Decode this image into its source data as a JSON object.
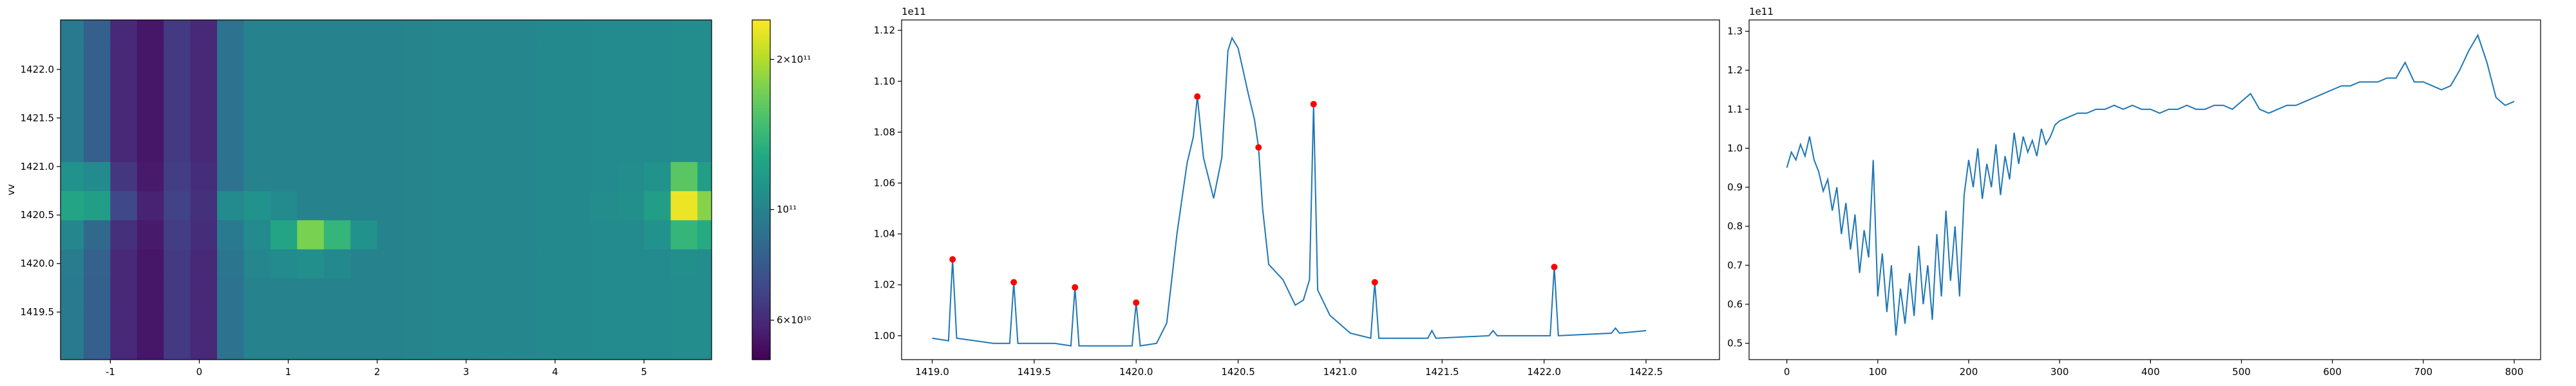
{
  "chart_data": [
    {
      "type": "heatmap",
      "ylabel": "vv",
      "x": [
        -1.45,
        -1.15,
        -0.85,
        -0.55,
        -0.25,
        0.05,
        0.35,
        0.65,
        0.95,
        1.25,
        1.55,
        1.85,
        2.15,
        2.45,
        2.75,
        3.05,
        3.35,
        3.65,
        3.95,
        4.25,
        4.55,
        4.85,
        5.15,
        5.45,
        5.75
      ],
      "y": [
        1419.1,
        1419.4,
        1419.7,
        1420.0,
        1420.3,
        1420.6,
        1420.9,
        1421.2,
        1421.5,
        1421.8,
        1422.1,
        1422.4
      ],
      "z": [
        [
          95000000000.0,
          80000000000.0,
          60000000000.0,
          55000000000.0,
          65000000000.0,
          60000000000.0,
          90000000000.0,
          100000000000.0,
          100000000000.0,
          100000000000.0,
          100000000000.0,
          100000000000.0,
          100000000000.0,
          101000000000.0,
          102000000000.0,
          102000000000.0,
          103000000000.0,
          103000000000.0,
          104000000000.0,
          104000000000.0,
          105000000000.0,
          105000000000.0,
          105000000000.0,
          106000000000.0,
          106000000000.0
        ],
        [
          95000000000.0,
          80000000000.0,
          60000000000.0,
          55000000000.0,
          65000000000.0,
          60000000000.0,
          90000000000.0,
          100000000000.0,
          100000000000.0,
          100000000000.0,
          100000000000.0,
          100000000000.0,
          100000000000.0,
          101000000000.0,
          102000000000.0,
          102000000000.0,
          103000000000.0,
          103000000000.0,
          104000000000.0,
          104000000000.0,
          105000000000.0,
          105000000000.0,
          105000000000.0,
          106000000000.0,
          106000000000.0
        ],
        [
          95000000000.0,
          80000000000.0,
          60000000000.0,
          55000000000.0,
          65000000000.0,
          60000000000.0,
          90000000000.0,
          100000000000.0,
          100000000000.0,
          100000000000.0,
          100000000000.0,
          100000000000.0,
          100000000000.0,
          101000000000.0,
          102000000000.0,
          102000000000.0,
          103000000000.0,
          103000000000.0,
          104000000000.0,
          104000000000.0,
          105000000000.0,
          105000000000.0,
          105000000000.0,
          106000000000.0,
          106000000000.0
        ],
        [
          96000000000.0,
          81000000000.0,
          60000000000.0,
          55000000000.0,
          65000000000.0,
          60000000000.0,
          92000000000.0,
          102000000000.0,
          105000000000.0,
          108000000000.0,
          104000000000.0,
          100000000000.0,
          100000000000.0,
          101000000000.0,
          102000000000.0,
          102000000000.0,
          103000000000.0,
          103000000000.0,
          104000000000.0,
          104000000000.0,
          105000000000.0,
          105000000000.0,
          105000000000.0,
          108000000000.0,
          107000000000.0
        ],
        [
          102000000000.0,
          85000000000.0,
          62000000000.0,
          56000000000.0,
          66000000000.0,
          61000000000.0,
          95000000000.0,
          105000000000.0,
          125000000000.0,
          175000000000.0,
          140000000000.0,
          110000000000.0,
          100000000000.0,
          101000000000.0,
          102000000000.0,
          102000000000.0,
          103000000000.0,
          103000000000.0,
          104000000000.0,
          104000000000.0,
          105000000000.0,
          105000000000.0,
          110000000000.0,
          140000000000.0,
          130000000000.0
        ],
        [
          125000000000.0,
          120000000000.0,
          70000000000.0,
          58000000000.0,
          68000000000.0,
          62000000000.0,
          105000000000.0,
          110000000000.0,
          105000000000.0,
          100000000000.0,
          100000000000.0,
          100000000000.0,
          100000000000.0,
          101000000000.0,
          102000000000.0,
          102000000000.0,
          103000000000.0,
          103000000000.0,
          104000000000.0,
          104000000000.0,
          106000000000.0,
          108000000000.0,
          120000000000.0,
          230000000000.0,
          180000000000.0
        ],
        [
          110000000000.0,
          105000000000.0,
          64000000000.0,
          56000000000.0,
          66000000000.0,
          61000000000.0,
          90000000000.0,
          100000000000.0,
          100000000000.0,
          100000000000.0,
          100000000000.0,
          100000000000.0,
          100000000000.0,
          101000000000.0,
          102000000000.0,
          102000000000.0,
          103000000000.0,
          103000000000.0,
          104000000000.0,
          104000000000.0,
          105000000000.0,
          106000000000.0,
          110000000000.0,
          160000000000.0,
          120000000000.0
        ],
        [
          95000000000.0,
          80000000000.0,
          60000000000.0,
          55000000000.0,
          65000000000.0,
          60000000000.0,
          90000000000.0,
          100000000000.0,
          100000000000.0,
          100000000000.0,
          100000000000.0,
          100000000000.0,
          100000000000.0,
          101000000000.0,
          102000000000.0,
          102000000000.0,
          103000000000.0,
          103000000000.0,
          104000000000.0,
          104000000000.0,
          105000000000.0,
          105000000000.0,
          105000000000.0,
          106000000000.0,
          106000000000.0
        ],
        [
          95000000000.0,
          80000000000.0,
          60000000000.0,
          55000000000.0,
          65000000000.0,
          60000000000.0,
          90000000000.0,
          100000000000.0,
          100000000000.0,
          100000000000.0,
          100000000000.0,
          100000000000.0,
          100000000000.0,
          101000000000.0,
          102000000000.0,
          102000000000.0,
          103000000000.0,
          103000000000.0,
          104000000000.0,
          104000000000.0,
          105000000000.0,
          105000000000.0,
          105000000000.0,
          106000000000.0,
          106000000000.0
        ],
        [
          95000000000.0,
          80000000000.0,
          60000000000.0,
          55000000000.0,
          65000000000.0,
          60000000000.0,
          90000000000.0,
          100000000000.0,
          100000000000.0,
          100000000000.0,
          100000000000.0,
          100000000000.0,
          100000000000.0,
          101000000000.0,
          102000000000.0,
          102000000000.0,
          103000000000.0,
          103000000000.0,
          104000000000.0,
          104000000000.0,
          105000000000.0,
          105000000000.0,
          105000000000.0,
          106000000000.0,
          106000000000.0
        ],
        [
          95000000000.0,
          80000000000.0,
          60000000000.0,
          55000000000.0,
          65000000000.0,
          60000000000.0,
          90000000000.0,
          100000000000.0,
          100000000000.0,
          100000000000.0,
          100000000000.0,
          100000000000.0,
          100000000000.0,
          101000000000.0,
          102000000000.0,
          102000000000.0,
          103000000000.0,
          103000000000.0,
          104000000000.0,
          104000000000.0,
          105000000000.0,
          105000000000.0,
          105000000000.0,
          106000000000.0,
          106000000000.0
        ],
        [
          95000000000.0,
          80000000000.0,
          60000000000.0,
          55000000000.0,
          65000000000.0,
          60000000000.0,
          90000000000.0,
          100000000000.0,
          100000000000.0,
          100000000000.0,
          100000000000.0,
          100000000000.0,
          100000000000.0,
          101000000000.0,
          102000000000.0,
          102000000000.0,
          103000000000.0,
          103000000000.0,
          104000000000.0,
          104000000000.0,
          105000000000.0,
          105000000000.0,
          105000000000.0,
          106000000000.0,
          106000000000.0
        ]
      ],
      "xlim": [
        -1.56,
        5.76
      ],
      "xticks": [
        -1,
        0,
        1,
        2,
        3,
        4,
        5
      ],
      "ylim": [
        1419.01,
        1422.51
      ],
      "yticks": [
        1419.5,
        {
          "value": 1420,
          "label": "1420.0"
        },
        1420.5,
        {
          "value": 1421,
          "label": "1421.0"
        },
        1421.5,
        {
          "value": 1422,
          "label": "1422.0"
        }
      ],
      "colorbar": {
        "log": true,
        "colormap": "viridis",
        "clim": [
          50000000000.0,
          240000000000.0
        ],
        "ticks": [
          {
            "value": 60000000000.0,
            "label": "6×10¹⁰"
          },
          {
            "value": 100000000000.0,
            "label": "10¹¹"
          },
          {
            "value": 200000000000.0,
            "label": "2×10¹¹"
          }
        ]
      }
    },
    {
      "type": "line",
      "offset_text": "1e11",
      "x": [
        1419.0,
        1419.08,
        1419.1,
        1419.12,
        1419.3,
        1419.38,
        1419.4,
        1419.42,
        1419.6,
        1419.68,
        1419.7,
        1419.72,
        1419.9,
        1419.98,
        1420.0,
        1420.02,
        1420.1,
        1420.15,
        1420.2,
        1420.25,
        1420.28,
        1420.3,
        1420.33,
        1420.38,
        1420.42,
        1420.45,
        1420.47,
        1420.5,
        1420.55,
        1420.58,
        1420.6,
        1420.62,
        1420.65,
        1420.72,
        1420.78,
        1420.82,
        1420.85,
        1420.87,
        1420.89,
        1420.95,
        1421.05,
        1421.15,
        1421.17,
        1421.19,
        1421.43,
        1421.45,
        1421.47,
        1421.73,
        1421.75,
        1421.77,
        1422.03,
        1422.05,
        1422.07,
        1422.33,
        1422.35,
        1422.37,
        1422.5
      ],
      "series": [
        {
          "color": "#1f77b4",
          "values": [
            0.999,
            0.998,
            1.03,
            0.999,
            0.997,
            0.997,
            1.021,
            0.997,
            0.997,
            0.996,
            1.019,
            0.996,
            0.996,
            0.996,
            1.013,
            0.996,
            0.997,
            1.005,
            1.04,
            1.068,
            1.078,
            1.094,
            1.07,
            1.054,
            1.07,
            1.112,
            1.117,
            1.113,
            1.095,
            1.085,
            1.074,
            1.05,
            1.028,
            1.022,
            1.012,
            1.014,
            1.022,
            1.091,
            1.018,
            1.008,
            1.001,
            0.999,
            1.021,
            0.999,
            0.999,
            1.002,
            0.999,
            1.0,
            1.002,
            1.0,
            1.0,
            1.027,
            1.0,
            1.001,
            1.003,
            1.001,
            1.002
          ]
        }
      ],
      "markers": {
        "color": "red",
        "x": [
          1419.1,
          1419.4,
          1419.7,
          1420.0,
          1420.3,
          1420.6,
          1420.87,
          1421.17,
          1422.05
        ],
        "values": [
          1.03,
          1.021,
          1.019,
          1.013,
          1.094,
          1.074,
          1.091,
          1.021,
          1.027
        ]
      },
      "xlim": [
        1418.85,
        1422.86
      ],
      "xticks": [
        {
          "value": 1419,
          "label": "1419.0"
        },
        1419.5,
        {
          "value": 1420,
          "label": "1420.0"
        },
        1420.5,
        {
          "value": 1421,
          "label": "1421.0"
        },
        1421.5,
        {
          "value": 1422,
          "label": "1422.0"
        },
        1422.5
      ],
      "ylim": [
        0.9906,
        1.1241
      ],
      "yticks": [
        {
          "value": 1,
          "label": "1.00"
        },
        1.02,
        1.04,
        1.06,
        1.08,
        {
          "value": 1.1,
          "label": "1.10"
        },
        1.12
      ]
    },
    {
      "type": "line",
      "offset_text": "1e11",
      "x": [
        0,
        5,
        10,
        15,
        20,
        25,
        30,
        35,
        40,
        45,
        50,
        55,
        60,
        65,
        70,
        75,
        80,
        85,
        90,
        95,
        100,
        105,
        110,
        115,
        120,
        125,
        130,
        135,
        140,
        145,
        150,
        155,
        160,
        165,
        170,
        175,
        180,
        185,
        190,
        195,
        200,
        205,
        210,
        215,
        220,
        225,
        230,
        235,
        240,
        245,
        250,
        255,
        260,
        265,
        270,
        275,
        280,
        285,
        290,
        295,
        300,
        310,
        320,
        330,
        340,
        350,
        360,
        370,
        380,
        390,
        400,
        410,
        420,
        430,
        440,
        450,
        460,
        470,
        480,
        490,
        500,
        510,
        520,
        530,
        540,
        550,
        560,
        570,
        580,
        590,
        600,
        610,
        620,
        630,
        640,
        650,
        660,
        670,
        680,
        690,
        700,
        710,
        720,
        730,
        740,
        750,
        760,
        770,
        780,
        790,
        800
      ],
      "series": [
        {
          "color": "#1f77b4",
          "values": [
            0.95,
            0.99,
            0.97,
            1.01,
            0.98,
            1.03,
            0.97,
            0.94,
            0.89,
            0.92,
            0.84,
            0.9,
            0.78,
            0.86,
            0.74,
            0.83,
            0.68,
            0.79,
            0.72,
            0.97,
            0.62,
            0.73,
            0.58,
            0.7,
            0.52,
            0.64,
            0.55,
            0.68,
            0.57,
            0.75,
            0.6,
            0.7,
            0.56,
            0.78,
            0.62,
            0.84,
            0.66,
            0.8,
            0.62,
            0.88,
            0.97,
            0.9,
            1.0,
            0.87,
            0.96,
            0.9,
            1.01,
            0.88,
            0.98,
            0.92,
            1.04,
            0.96,
            1.03,
            0.99,
            1.02,
            0.98,
            1.05,
            1.01,
            1.03,
            1.06,
            1.07,
            1.08,
            1.09,
            1.09,
            1.1,
            1.1,
            1.11,
            1.1,
            1.11,
            1.1,
            1.1,
            1.09,
            1.1,
            1.1,
            1.11,
            1.1,
            1.1,
            1.11,
            1.11,
            1.1,
            1.12,
            1.14,
            1.1,
            1.09,
            1.1,
            1.11,
            1.11,
            1.12,
            1.13,
            1.14,
            1.15,
            1.16,
            1.16,
            1.17,
            1.17,
            1.17,
            1.18,
            1.18,
            1.22,
            1.17,
            1.17,
            1.16,
            1.15,
            1.16,
            1.2,
            1.25,
            1.29,
            1.22,
            1.13,
            1.11,
            1.12
          ]
        }
      ],
      "xlim": [
        -41.5,
        829
      ],
      "xticks": [
        0,
        100,
        200,
        300,
        400,
        500,
        600,
        700,
        800
      ],
      "ylim": [
        0.458,
        1.329
      ],
      "yticks": [
        0.5,
        0.6,
        0.7,
        0.8,
        0.9,
        {
          "value": 1,
          "label": "1.0"
        },
        1.1,
        1.2,
        1.3
      ]
    }
  ]
}
